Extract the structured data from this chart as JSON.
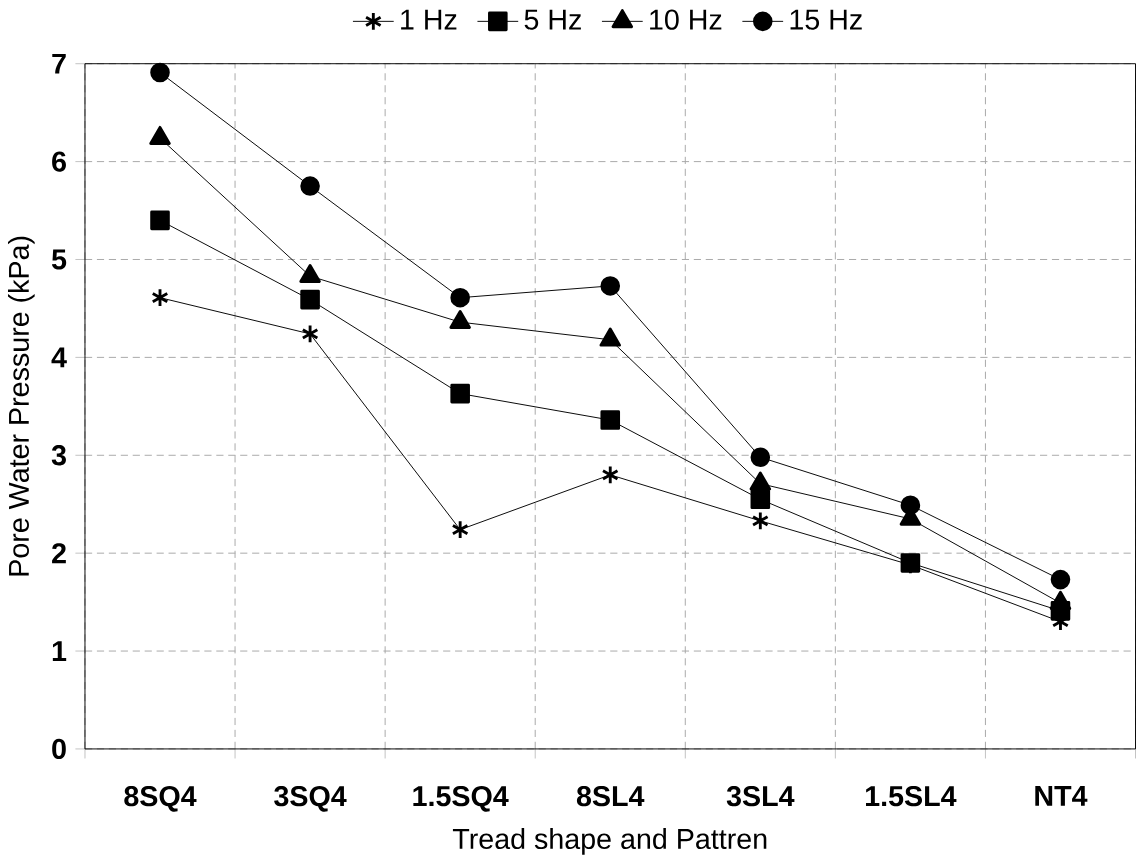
{
  "chart_data": {
    "type": "line",
    "xlabel": "Tread shape and Pattren",
    "ylabel": "Pore Water Pressure (kPa)",
    "categories": [
      "8SQ4",
      "3SQ4",
      "1.5SQ4",
      "8SL4",
      "3SL4",
      "1.5SL4",
      "NT4"
    ],
    "series": [
      {
        "name": "1 Hz",
        "color": "#000000",
        "marker": "cross",
        "values": [
          4.61,
          4.24,
          2.24,
          2.8,
          2.33,
          1.88,
          1.3
        ]
      },
      {
        "name": "5 Hz",
        "color": "#000000",
        "marker": "square",
        "values": [
          5.4,
          4.59,
          3.63,
          3.36,
          2.55,
          1.9,
          1.41
        ]
      },
      {
        "name": "10 Hz",
        "color": "#000000",
        "marker": "triangle",
        "values": [
          6.24,
          4.83,
          4.36,
          4.18,
          2.71,
          2.35,
          1.49
        ]
      },
      {
        "name": "15 Hz",
        "color": "#000000",
        "marker": "circle",
        "values": [
          6.91,
          5.75,
          4.61,
          4.73,
          2.98,
          2.49,
          1.73
        ]
      }
    ],
    "ylim": [
      0,
      7
    ],
    "yticks": [
      0,
      1,
      2,
      3,
      4,
      5,
      6,
      7
    ],
    "grid": true,
    "legend": "top",
    "line_style": "solid"
  }
}
